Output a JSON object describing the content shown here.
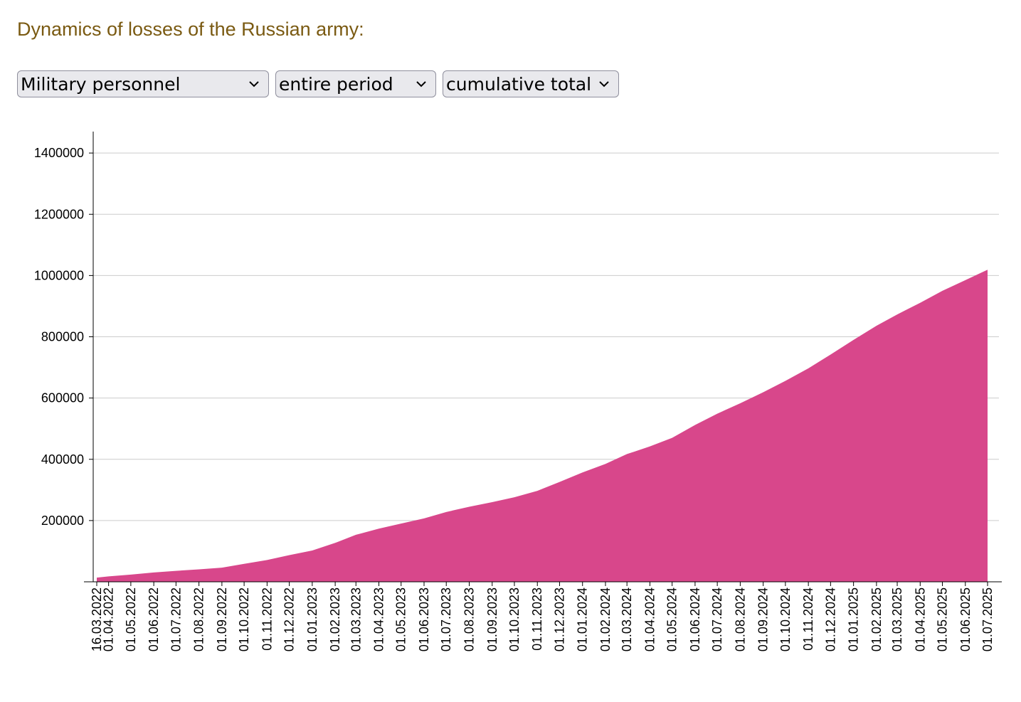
{
  "controls": {
    "indicator": "Military personnel",
    "period": "entire period",
    "mode": "cumulative total"
  },
  "chart_data": {
    "type": "area",
    "title": "Dynamics of losses of the Russian army:",
    "color": "#d8478b",
    "x": [
      "16.03.2022",
      "01.04.2022",
      "01.05.2022",
      "01.06.2022",
      "01.07.2022",
      "01.08.2022",
      "01.09.2022",
      "01.10.2022",
      "01.11.2022",
      "01.12.2022",
      "01.01.2023",
      "01.02.2023",
      "01.03.2023",
      "01.04.2023",
      "01.05.2023",
      "01.06.2023",
      "01.07.2023",
      "01.08.2023",
      "01.09.2023",
      "01.10.2023",
      "01.11.2023",
      "01.12.2023",
      "01.01.2024",
      "01.02.2024",
      "01.03.2024",
      "01.04.2024",
      "01.05.2024",
      "01.06.2024",
      "01.07.2024",
      "01.08.2024",
      "01.09.2024",
      "01.10.2024",
      "01.11.2024",
      "01.12.2024",
      "01.01.2025",
      "01.02.2025",
      "01.03.2025",
      "01.04.2025",
      "01.05.2025",
      "01.06.2025",
      "01.07.2025"
    ],
    "values": [
      13500,
      17700,
      23500,
      30500,
      35750,
      40500,
      46200,
      58750,
      71200,
      87000,
      102250,
      127000,
      153500,
      173500,
      190000,
      207000,
      228000,
      245000,
      260000,
      276000,
      297000,
      326000,
      357000,
      385000,
      417000,
      442000,
      470000,
      512000,
      549000,
      583000,
      619000,
      656000,
      697000,
      742000,
      790000,
      836000,
      873000,
      911000,
      950000,
      985000,
      1019000
    ],
    "ylim": [
      0,
      1470000
    ],
    "yticks": [
      200000,
      400000,
      600000,
      800000,
      1000000,
      1200000,
      1400000
    ],
    "grid": true
  }
}
